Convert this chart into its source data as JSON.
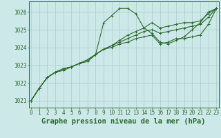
{
  "background_color": "#cce8e8",
  "grid_color": "#aacccc",
  "line_color": "#2d6a2d",
  "title": "Graphe pression niveau de la mer (hPa)",
  "ylim": [
    1020.6,
    1026.6
  ],
  "yticks": [
    1021,
    1022,
    1023,
    1024,
    1025,
    1026
  ],
  "series": [
    [
      1021.0,
      1021.7,
      1022.3,
      1022.6,
      1022.7,
      1022.9,
      1023.1,
      1023.2,
      1023.6,
      1025.4,
      1025.8,
      1026.2,
      1026.2,
      1025.9,
      1025.1,
      1024.8,
      1024.3,
      1024.2,
      1024.4,
      1024.6,
      1025.0,
      1025.4,
      1026.0,
      1026.2
    ],
    [
      1021.0,
      1021.7,
      1022.3,
      1022.6,
      1022.8,
      1022.9,
      1023.1,
      1023.3,
      1023.6,
      1023.9,
      1024.1,
      1024.4,
      1024.7,
      1024.9,
      1025.1,
      1025.4,
      1025.1,
      1025.2,
      1025.3,
      1025.4,
      1025.4,
      1025.5,
      1025.9,
      1026.2
    ],
    [
      1021.0,
      1021.7,
      1022.3,
      1022.6,
      1022.8,
      1022.9,
      1023.1,
      1023.3,
      1023.6,
      1023.9,
      1024.1,
      1024.3,
      1024.5,
      1024.7,
      1024.9,
      1025.0,
      1024.8,
      1024.9,
      1025.0,
      1025.1,
      1025.2,
      1025.3,
      1025.7,
      1026.2
    ],
    [
      1021.0,
      1021.7,
      1022.3,
      1022.6,
      1022.8,
      1022.9,
      1023.1,
      1023.3,
      1023.6,
      1023.9,
      1024.0,
      1024.2,
      1024.3,
      1024.5,
      1024.6,
      1024.7,
      1024.2,
      1024.3,
      1024.5,
      1024.5,
      1024.6,
      1024.7,
      1025.3,
      1026.2
    ]
  ],
  "marker": "+",
  "markersize": 3,
  "linewidth": 0.8,
  "title_fontsize": 7.5,
  "tick_fontsize": 5.5,
  "title_fontweight": "bold"
}
